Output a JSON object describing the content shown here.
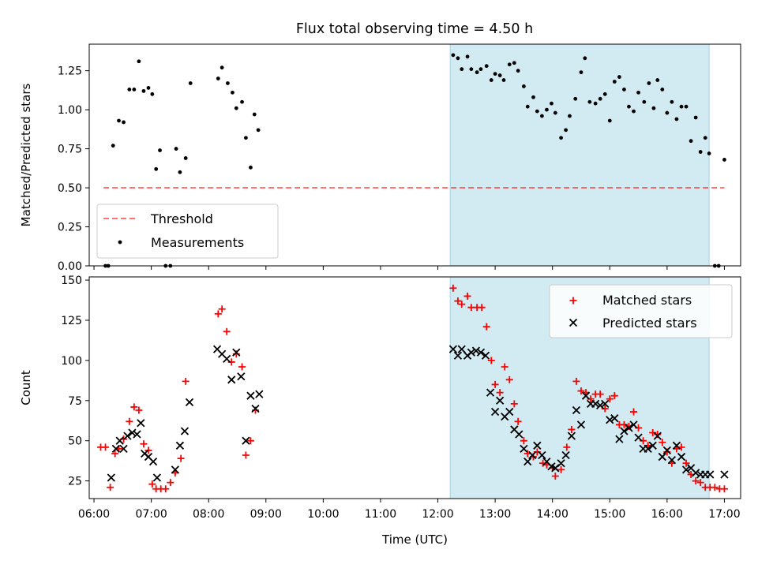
{
  "title": "Flux total observing time = 4.50 h",
  "colors": {
    "shade": "#add8e6",
    "threshold": "#ff0000",
    "measurements": "#000000",
    "matched": "#ff0000",
    "predicted": "#000000"
  },
  "chart_data": [
    {
      "type": "scatter",
      "panel": "top",
      "ylabel": "Matched/Predicted stars",
      "ylim": [
        0,
        1.42
      ],
      "xlim": [
        "05:55",
        "17:17"
      ],
      "yticks": [
        "0.00",
        "0.25",
        "0.50",
        "0.75",
        "1.00",
        "1.25"
      ],
      "shaded_interval": [
        "12:13",
        "16:44"
      ],
      "legend": {
        "placement": "lower-left",
        "entries": [
          "Threshold",
          "Measurements"
        ]
      },
      "threshold": {
        "name": "Threshold",
        "y": 0.5,
        "x": [
          "06:10",
          "17:00"
        ],
        "style": "dashed"
      },
      "series": [
        {
          "name": "Measurements",
          "points": [
            [
              "06:12",
              0.0
            ],
            [
              "06:15",
              0.0
            ],
            [
              "06:20",
              0.77
            ],
            [
              "06:26",
              0.93
            ],
            [
              "06:31",
              0.92
            ],
            [
              "06:37",
              1.13
            ],
            [
              "06:42",
              1.13
            ],
            [
              "06:47",
              1.31
            ],
            [
              "06:52",
              1.12
            ],
            [
              "06:57",
              1.14
            ],
            [
              "07:01",
              1.1
            ],
            [
              "07:05",
              0.62
            ],
            [
              "07:09",
              0.74
            ],
            [
              "07:15",
              0.0
            ],
            [
              "07:20",
              0.0
            ],
            [
              "07:26",
              0.75
            ],
            [
              "07:30",
              0.6
            ],
            [
              "07:36",
              0.69
            ],
            [
              "07:41",
              1.17
            ],
            [
              "08:10",
              1.2
            ],
            [
              "08:14",
              1.27
            ],
            [
              "08:20",
              1.17
            ],
            [
              "08:25",
              1.11
            ],
            [
              "08:29",
              1.01
            ],
            [
              "08:35",
              1.05
            ],
            [
              "08:39",
              0.82
            ],
            [
              "08:44",
              0.63
            ],
            [
              "08:48",
              0.97
            ],
            [
              "08:52",
              0.87
            ],
            [
              "12:16",
              1.35
            ],
            [
              "12:21",
              1.33
            ],
            [
              "12:25",
              1.26
            ],
            [
              "12:31",
              1.34
            ],
            [
              "12:35",
              1.26
            ],
            [
              "12:41",
              1.24
            ],
            [
              "12:45",
              1.26
            ],
            [
              "12:51",
              1.28
            ],
            [
              "12:56",
              1.19
            ],
            [
              "13:00",
              1.23
            ],
            [
              "13:05",
              1.22
            ],
            [
              "13:09",
              1.19
            ],
            [
              "13:15",
              1.29
            ],
            [
              "13:20",
              1.3
            ],
            [
              "13:24",
              1.25
            ],
            [
              "13:30",
              1.15
            ],
            [
              "13:34",
              1.02
            ],
            [
              "13:40",
              1.08
            ],
            [
              "13:44",
              0.99
            ],
            [
              "13:49",
              0.96
            ],
            [
              "13:54",
              1.0
            ],
            [
              "13:59",
              1.04
            ],
            [
              "14:03",
              0.98
            ],
            [
              "14:09",
              0.82
            ],
            [
              "14:14",
              0.87
            ],
            [
              "14:18",
              0.96
            ],
            [
              "14:24",
              1.07
            ],
            [
              "14:30",
              1.24
            ],
            [
              "14:34",
              1.33
            ],
            [
              "14:39",
              1.05
            ],
            [
              "14:45",
              1.04
            ],
            [
              "14:50",
              1.07
            ],
            [
              "14:55",
              1.1
            ],
            [
              "15:00",
              0.93
            ],
            [
              "15:05",
              1.18
            ],
            [
              "15:10",
              1.21
            ],
            [
              "15:15",
              1.13
            ],
            [
              "15:20",
              1.02
            ],
            [
              "15:25",
              0.99
            ],
            [
              "15:30",
              1.11
            ],
            [
              "15:36",
              1.05
            ],
            [
              "15:41",
              1.17
            ],
            [
              "15:46",
              1.01
            ],
            [
              "15:50",
              1.19
            ],
            [
              "15:55",
              1.13
            ],
            [
              "16:00",
              0.98
            ],
            [
              "16:05",
              1.05
            ],
            [
              "16:10",
              0.94
            ],
            [
              "16:15",
              1.02
            ],
            [
              "16:20",
              1.02
            ],
            [
              "16:25",
              0.8
            ],
            [
              "16:30",
              0.95
            ],
            [
              "16:35",
              0.73
            ],
            [
              "16:40",
              0.82
            ],
            [
              "16:44",
              0.72
            ],
            [
              "16:50",
              0.0
            ],
            [
              "16:54",
              0.0
            ],
            [
              "17:00",
              0.68
            ]
          ]
        }
      ]
    },
    {
      "type": "scatter",
      "panel": "bottom",
      "xlabel": "Time (UTC)",
      "ylabel": "Count",
      "ylim": [
        14,
        152
      ],
      "xlim": [
        "05:55",
        "17:17"
      ],
      "yticks": [
        "25",
        "50",
        "75",
        "100",
        "125",
        "150"
      ],
      "xticks": [
        "06:00",
        "07:00",
        "08:00",
        "09:00",
        "10:00",
        "11:00",
        "12:00",
        "13:00",
        "14:00",
        "15:00",
        "16:00",
        "17:00"
      ],
      "shaded_interval": [
        "12:13",
        "16:44"
      ],
      "legend": {
        "placement": "top-right",
        "entries": [
          "Matched stars",
          "Predicted stars"
        ]
      },
      "series": [
        {
          "name": "Matched stars",
          "marker": "plus",
          "points": [
            [
              "06:07",
              46
            ],
            [
              "06:12",
              46
            ],
            [
              "06:17",
              21
            ],
            [
              "06:22",
              42
            ],
            [
              "06:26",
              45
            ],
            [
              "06:31",
              51
            ],
            [
              "06:37",
              62
            ],
            [
              "06:42",
              71
            ],
            [
              "06:47",
              69
            ],
            [
              "06:52",
              48
            ],
            [
              "06:57",
              44
            ],
            [
              "07:01",
              23
            ],
            [
              "07:05",
              20
            ],
            [
              "07:10",
              20
            ],
            [
              "07:15",
              20
            ],
            [
              "07:20",
              24
            ],
            [
              "07:25",
              30
            ],
            [
              "07:31",
              39
            ],
            [
              "07:36",
              87
            ],
            [
              "08:10",
              129
            ],
            [
              "08:14",
              132
            ],
            [
              "08:19",
              118
            ],
            [
              "08:24",
              99
            ],
            [
              "08:29",
              104
            ],
            [
              "08:35",
              96
            ],
            [
              "08:39",
              41
            ],
            [
              "08:44",
              50
            ],
            [
              "08:49",
              69
            ],
            [
              "12:16",
              145
            ],
            [
              "12:21",
              137
            ],
            [
              "12:25",
              135
            ],
            [
              "12:31",
              140
            ],
            [
              "12:35",
              133
            ],
            [
              "12:41",
              133
            ],
            [
              "12:46",
              133
            ],
            [
              "12:51",
              121
            ],
            [
              "12:56",
              100
            ],
            [
              "13:00",
              85
            ],
            [
              "13:05",
              80
            ],
            [
              "13:10",
              96
            ],
            [
              "13:15",
              88
            ],
            [
              "13:20",
              73
            ],
            [
              "13:24",
              62
            ],
            [
              "13:30",
              50
            ],
            [
              "13:34",
              42
            ],
            [
              "13:40",
              40
            ],
            [
              "13:44",
              43
            ],
            [
              "13:50",
              36
            ],
            [
              "13:54",
              35
            ],
            [
              "14:00",
              33
            ],
            [
              "14:03",
              28
            ],
            [
              "14:09",
              32
            ],
            [
              "14:15",
              46
            ],
            [
              "14:20",
              57
            ],
            [
              "14:25",
              87
            ],
            [
              "14:30",
              81
            ],
            [
              "14:35",
              80
            ],
            [
              "14:40",
              76
            ],
            [
              "14:45",
              79
            ],
            [
              "14:50",
              79
            ],
            [
              "14:55",
              70
            ],
            [
              "15:00",
              76
            ],
            [
              "15:05",
              78
            ],
            [
              "15:10",
              60
            ],
            [
              "15:15",
              60
            ],
            [
              "15:20",
              59
            ],
            [
              "15:25",
              68
            ],
            [
              "15:30",
              58
            ],
            [
              "15:35",
              50
            ],
            [
              "15:40",
              47
            ],
            [
              "15:45",
              55
            ],
            [
              "15:50",
              54
            ],
            [
              "15:55",
              49
            ],
            [
              "16:00",
              43
            ],
            [
              "16:05",
              36
            ],
            [
              "16:10",
              45
            ],
            [
              "16:15",
              46
            ],
            [
              "16:20",
              36
            ],
            [
              "16:25",
              29
            ],
            [
              "16:30",
              25
            ],
            [
              "16:35",
              24
            ],
            [
              "16:40",
              21
            ],
            [
              "16:45",
              21
            ],
            [
              "16:50",
              21
            ],
            [
              "16:55",
              20
            ],
            [
              "17:00",
              20
            ]
          ]
        },
        {
          "name": "Predicted stars",
          "marker": "x",
          "points": [
            [
              "06:18",
              27
            ],
            [
              "06:23",
              45
            ],
            [
              "06:27",
              50
            ],
            [
              "06:31",
              45
            ],
            [
              "06:35",
              53
            ],
            [
              "06:40",
              55
            ],
            [
              "06:45",
              54
            ],
            [
              "06:49",
              61
            ],
            [
              "06:53",
              42
            ],
            [
              "06:57",
              40
            ],
            [
              "07:02",
              37
            ],
            [
              "07:06",
              27
            ],
            [
              "07:25",
              32
            ],
            [
              "07:30",
              47
            ],
            [
              "07:35",
              56
            ],
            [
              "07:40",
              74
            ],
            [
              "08:09",
              107
            ],
            [
              "08:14",
              104
            ],
            [
              "08:19",
              101
            ],
            [
              "08:24",
              88
            ],
            [
              "08:29",
              105
            ],
            [
              "08:34",
              90
            ],
            [
              "08:39",
              50
            ],
            [
              "08:44",
              78
            ],
            [
              "08:49",
              70
            ],
            [
              "08:53",
              79
            ],
            [
              "12:16",
              107
            ],
            [
              "12:21",
              103
            ],
            [
              "12:25",
              107
            ],
            [
              "12:31",
              103
            ],
            [
              "12:35",
              105
            ],
            [
              "12:40",
              106
            ],
            [
              "12:45",
              105
            ],
            [
              "12:50",
              103
            ],
            [
              "12:55",
              80
            ],
            [
              "13:00",
              68
            ],
            [
              "13:05",
              75
            ],
            [
              "13:10",
              65
            ],
            [
              "13:15",
              68
            ],
            [
              "13:20",
              57
            ],
            [
              "13:25",
              54
            ],
            [
              "13:30",
              45
            ],
            [
              "13:34",
              37
            ],
            [
              "13:39",
              41
            ],
            [
              "13:44",
              47
            ],
            [
              "13:49",
              41
            ],
            [
              "13:54",
              37
            ],
            [
              "13:59",
              34
            ],
            [
              "14:03",
              33
            ],
            [
              "14:09",
              36
            ],
            [
              "14:14",
              41
            ],
            [
              "14:20",
              53
            ],
            [
              "14:25",
              69
            ],
            [
              "14:30",
              60
            ],
            [
              "14:35",
              78
            ],
            [
              "14:40",
              73
            ],
            [
              "14:45",
              73
            ],
            [
              "14:50",
              72
            ],
            [
              "14:55",
              73
            ],
            [
              "15:00",
              63
            ],
            [
              "15:05",
              64
            ],
            [
              "15:10",
              51
            ],
            [
              "15:15",
              56
            ],
            [
              "15:20",
              58
            ],
            [
              "15:25",
              60
            ],
            [
              "15:30",
              52
            ],
            [
              "15:35",
              45
            ],
            [
              "15:40",
              45
            ],
            [
              "15:45",
              47
            ],
            [
              "15:50",
              53
            ],
            [
              "15:55",
              40
            ],
            [
              "16:00",
              44
            ],
            [
              "16:05",
              38
            ],
            [
              "16:10",
              47
            ],
            [
              "16:15",
              40
            ],
            [
              "16:20",
              32
            ],
            [
              "16:25",
              33
            ],
            [
              "16:30",
              30
            ],
            [
              "16:35",
              29
            ],
            [
              "16:40",
              29
            ],
            [
              "16:45",
              29
            ],
            [
              "17:00",
              29
            ]
          ]
        }
      ]
    }
  ]
}
